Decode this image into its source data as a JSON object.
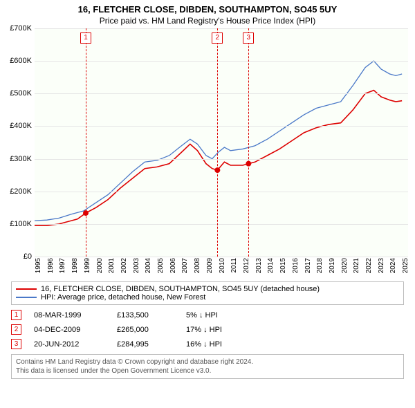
{
  "title": "16, FLETCHER CLOSE, DIBDEN, SOUTHAMPTON, SO45 5UY",
  "subtitle": "Price paid vs. HM Land Registry's House Price Index (HPI)",
  "chart": {
    "type": "line",
    "background_color": "#fbfff9",
    "grid_color": "#e5e5e5",
    "ylim": [
      0,
      700
    ],
    "ytick_labels": [
      "£0",
      "£100K",
      "£200K",
      "£300K",
      "£400K",
      "£500K",
      "£600K",
      "£700K"
    ],
    "yticks": [
      0,
      100,
      200,
      300,
      400,
      500,
      600,
      700
    ],
    "xlim": [
      1995,
      2025.5
    ],
    "xticks": [
      1995,
      1996,
      1997,
      1998,
      1999,
      2000,
      2001,
      2002,
      2003,
      2004,
      2005,
      2006,
      2007,
      2008,
      2009,
      2010,
      2011,
      2012,
      2013,
      2014,
      2015,
      2016,
      2017,
      2018,
      2019,
      2020,
      2021,
      2022,
      2023,
      2024,
      2025
    ],
    "series": [
      {
        "name": "price_paid",
        "color": "#dd0000",
        "width": 1.6,
        "data": [
          [
            1995,
            95
          ],
          [
            1996,
            95
          ],
          [
            1997,
            100
          ],
          [
            1998,
            110
          ],
          [
            1998.5,
            115
          ],
          [
            1999.18,
            133.5
          ],
          [
            2000,
            150
          ],
          [
            2001,
            175
          ],
          [
            2002,
            210
          ],
          [
            2003,
            240
          ],
          [
            2004,
            270
          ],
          [
            2005,
            275
          ],
          [
            2006,
            285
          ],
          [
            2007,
            320
          ],
          [
            2007.7,
            345
          ],
          [
            2008.3,
            325
          ],
          [
            2009,
            285
          ],
          [
            2009.5,
            270
          ],
          [
            2009.93,
            265
          ],
          [
            2010.5,
            290
          ],
          [
            2011,
            280
          ],
          [
            2012,
            280
          ],
          [
            2012.47,
            284.995
          ],
          [
            2013,
            290
          ],
          [
            2014,
            310
          ],
          [
            2015,
            330
          ],
          [
            2016,
            355
          ],
          [
            2017,
            380
          ],
          [
            2018,
            395
          ],
          [
            2019,
            405
          ],
          [
            2020,
            410
          ],
          [
            2021,
            450
          ],
          [
            2022,
            500
          ],
          [
            2022.7,
            510
          ],
          [
            2023.3,
            490
          ],
          [
            2024,
            480
          ],
          [
            2024.5,
            475
          ],
          [
            2025,
            478
          ]
        ]
      },
      {
        "name": "hpi",
        "color": "#4a78c8",
        "width": 1.3,
        "data": [
          [
            1995,
            110
          ],
          [
            1996,
            112
          ],
          [
            1997,
            118
          ],
          [
            1998,
            130
          ],
          [
            1999,
            140
          ],
          [
            2000,
            165
          ],
          [
            2001,
            190
          ],
          [
            2002,
            225
          ],
          [
            2003,
            260
          ],
          [
            2004,
            290
          ],
          [
            2005,
            295
          ],
          [
            2006,
            310
          ],
          [
            2007,
            340
          ],
          [
            2007.7,
            360
          ],
          [
            2008.3,
            345
          ],
          [
            2009,
            310
          ],
          [
            2009.5,
            300
          ],
          [
            2010,
            320
          ],
          [
            2010.5,
            335
          ],
          [
            2011,
            325
          ],
          [
            2012,
            330
          ],
          [
            2013,
            340
          ],
          [
            2014,
            360
          ],
          [
            2015,
            385
          ],
          [
            2016,
            410
          ],
          [
            2017,
            435
          ],
          [
            2018,
            455
          ],
          [
            2019,
            465
          ],
          [
            2020,
            475
          ],
          [
            2021,
            525
          ],
          [
            2022,
            580
          ],
          [
            2022.7,
            600
          ],
          [
            2023.3,
            575
          ],
          [
            2024,
            560
          ],
          [
            2024.5,
            555
          ],
          [
            2025,
            560
          ]
        ]
      }
    ],
    "sale_markers": [
      {
        "n": "1",
        "x": 1999.18,
        "y": 133.5,
        "date": "08-MAR-1999",
        "price": "£133,500",
        "pct": "5% ↓ HPI"
      },
      {
        "n": "2",
        "x": 2009.93,
        "y": 265,
        "date": "04-DEC-2009",
        "price": "£265,000",
        "pct": "17% ↓ HPI"
      },
      {
        "n": "3",
        "x": 2012.47,
        "y": 284.995,
        "date": "20-JUN-2012",
        "price": "£284,995",
        "pct": "16% ↓ HPI"
      }
    ],
    "marker_point_color": "#dd0000",
    "marker_vline_color": "#dd0000"
  },
  "legend": {
    "series1": {
      "color": "#dd0000",
      "label": "16, FLETCHER CLOSE, DIBDEN, SOUTHAMPTON, SO45 5UY (detached house)"
    },
    "series2": {
      "color": "#4a78c8",
      "label": "HPI: Average price, detached house, New Forest"
    }
  },
  "footer": {
    "line1": "Contains HM Land Registry data © Crown copyright and database right 2024.",
    "line2": "This data is licensed under the Open Government Licence v3.0."
  }
}
